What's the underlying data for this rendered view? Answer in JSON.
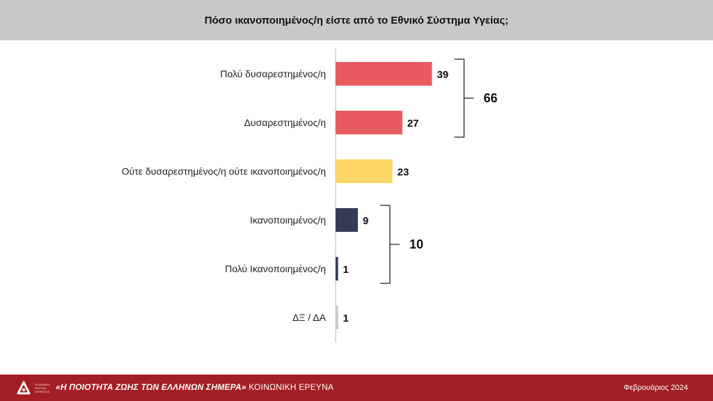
{
  "header": {
    "title": "Πόσο ικανοποιημένος/η είστε από το Εθνικό Σύστημα Υγείας;"
  },
  "chart_data": {
    "type": "bar",
    "orientation": "horizontal",
    "title": "Πόσο ικανοποιημένος/η είστε από το Εθνικό Σύστημα Υγείας;",
    "categories": [
      "Πολύ δυσαρεστημένος/η",
      "Δυσαρεστημένος/η",
      "Ούτε δυσαρεστημένος/η ούτε ικανοποιημένος/η",
      "Ικανοποιημένος/η",
      "Πολύ Ικανοποιημένος/η",
      "ΔΞ / ΔΑ"
    ],
    "values": [
      39,
      27,
      23,
      9,
      1,
      1
    ],
    "colors": [
      "#e85c60",
      "#e85c60",
      "#fdd866",
      "#333c52",
      "#333c52",
      "#c8c8c8"
    ],
    "groups": [
      {
        "total": 66,
        "from": 0,
        "to": 1
      },
      {
        "total": 10,
        "from": 3,
        "to": 4
      }
    ],
    "xlim": [
      0,
      45
    ],
    "grid": false,
    "legend": "none"
  },
  "footer": {
    "logo_text": [
      "ΚΟΙΝΩΝΙΚΗ",
      "ΕΡΕΥΝΑ",
      "ΔΙΑΝΕΟΣΙΣ"
    ],
    "title_bold": "«Η ΠΟΙΟΤΗΤΑ ΖΩΗΣ ΤΩΝ ΕΛΛΗΝΩΝ ΣΗΜΕΡΑ»",
    "title_rest": "ΚΟΙΝΩΝΙΚΗ ΕΡΕΥΝΑ",
    "date": "Φεβρουάριος 2024"
  }
}
